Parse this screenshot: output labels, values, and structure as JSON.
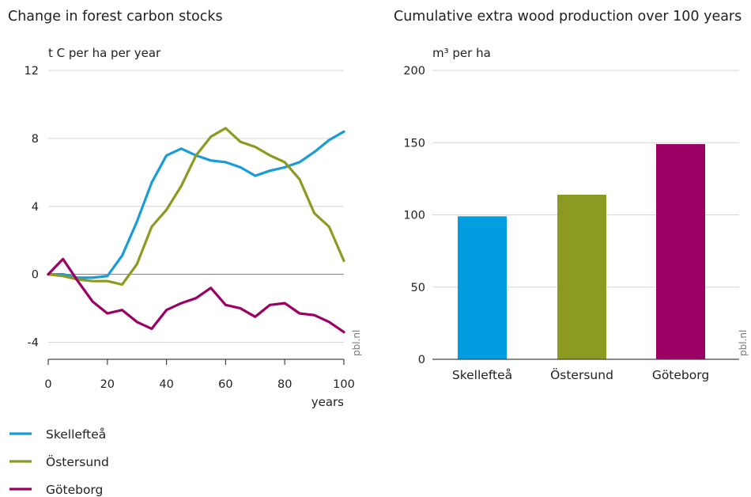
{
  "chart_data": [
    {
      "type": "line",
      "title": "Change in forest carbon stocks",
      "ylabel": "t C per ha per year",
      "xlabel": "years",
      "ylim": [
        -5,
        12
      ],
      "yticks": [
        -4,
        0,
        4,
        8,
        12
      ],
      "xlim": [
        0,
        100
      ],
      "xticks": [
        0,
        20,
        40,
        60,
        80,
        100
      ],
      "grid": true,
      "legend_position": "bottom-left",
      "source": "pbl.nl",
      "x": [
        0,
        5,
        10,
        15,
        20,
        25,
        30,
        35,
        40,
        45,
        50,
        55,
        60,
        65,
        70,
        75,
        80,
        85,
        90,
        95,
        100
      ],
      "series": [
        {
          "name": "Skellefteå",
          "color": "#1a9cd8",
          "values": [
            0,
            0,
            -0.2,
            -0.2,
            -0.1,
            1.1,
            3.1,
            5.4,
            7.0,
            7.4,
            7.0,
            6.7,
            6.6,
            6.3,
            5.8,
            6.1,
            6.3,
            6.6,
            7.2,
            7.9,
            8.4
          ]
        },
        {
          "name": "Östersund",
          "color": "#8c9a22",
          "values": [
            0,
            -0.1,
            -0.3,
            -0.4,
            -0.4,
            -0.6,
            0.6,
            2.8,
            3.8,
            5.2,
            7.0,
            8.1,
            8.6,
            7.8,
            7.5,
            7.0,
            6.6,
            5.6,
            3.6,
            2.8,
            0.8
          ]
        },
        {
          "name": "Göteborg",
          "color": "#9b0065",
          "values": [
            0,
            0.9,
            -0.4,
            -1.6,
            -2.3,
            -2.1,
            -2.8,
            -3.2,
            -2.1,
            -1.7,
            -1.4,
            -0.8,
            -1.8,
            -2.0,
            -2.5,
            -1.8,
            -1.7,
            -2.3,
            -2.4,
            -2.8,
            -3.4
          ]
        }
      ]
    },
    {
      "type": "bar",
      "title": "Cumulative extra wood production over 100 years",
      "ylabel": "m³ per ha",
      "ylim": [
        0,
        200
      ],
      "yticks": [
        0,
        50,
        100,
        150,
        200
      ],
      "grid": true,
      "source": "pbl.nl",
      "categories": [
        "Skellefteå",
        "Östersund",
        "Göteborg"
      ],
      "values": [
        99,
        114,
        149
      ],
      "colors": [
        "#009ee0",
        "#8c9a22",
        "#9b0065"
      ]
    }
  ]
}
